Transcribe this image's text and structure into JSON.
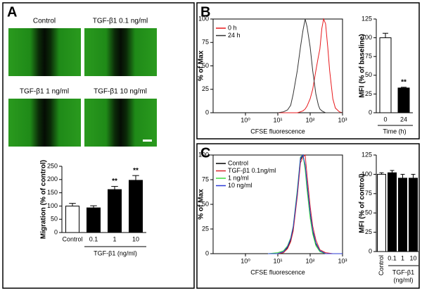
{
  "panel_labels": [
    "A",
    "B",
    "C"
  ],
  "images": [
    {
      "label": "Control"
    },
    {
      "label": "TGF-β1 0.1 ng/ml"
    },
    {
      "label": "TGF-β1 1 ng/ml"
    },
    {
      "label": "TGF-β1 10 ng/ml"
    }
  ],
  "chart_data": [
    {
      "type": "bar",
      "ylabel": "Migration (% of control)",
      "categories": [
        "Control",
        "0.1",
        "1",
        "10"
      ],
      "values": [
        100,
        93,
        162,
        197
      ],
      "errors": [
        10,
        8,
        12,
        18
      ],
      "colors": [
        "#ffffff",
        "#000000",
        "#000000",
        "#000000"
      ],
      "significance": [
        null,
        null,
        "**",
        "**"
      ],
      "group_label_lines": [
        "TGF-β1 (ng/ml)"
      ],
      "ylim": [
        0,
        250
      ],
      "yticks": [
        0,
        50,
        100,
        150,
        200,
        250
      ]
    },
    {
      "type": "line",
      "xlabel": "CFSE fluorescence",
      "ylabel": "% of Max",
      "log_x": true,
      "legend": "upper left",
      "x": [
        10,
        15,
        20,
        25,
        30,
        40,
        50,
        60,
        70,
        80,
        100,
        120,
        150,
        180,
        200,
        230,
        260,
        300,
        350,
        400,
        500,
        600,
        800,
        1000
      ],
      "series": [
        {
          "name": "0 h",
          "color": "#e8191c",
          "values": [
            0,
            0,
            0,
            0,
            0,
            0,
            1,
            2,
            4,
            7,
            15,
            25,
            45,
            60,
            68,
            90,
            100,
            95,
            70,
            45,
            15,
            5,
            1,
            0
          ]
        },
        {
          "name": "24 h",
          "color": "#333333",
          "values": [
            0,
            1,
            3,
            8,
            20,
            45,
            70,
            88,
            100,
            92,
            70,
            45,
            20,
            8,
            4,
            2,
            1,
            0,
            0,
            0,
            0,
            0,
            0,
            0
          ]
        }
      ],
      "xlim": [
        0.1,
        1000
      ],
      "xticks": [
        {
          "value": 1,
          "label": "10⁰"
        },
        {
          "value": 10,
          "label": "10¹"
        },
        {
          "value": 100,
          "label": "10²"
        },
        {
          "value": 1000,
          "label": "10³"
        }
      ],
      "ylim": [
        0,
        100
      ],
      "yticks": [
        0,
        25,
        50,
        75,
        100
      ]
    },
    {
      "type": "bar",
      "ylabel": "MFI (% of baseline)",
      "xlabel": "Time (h)",
      "categories": [
        "0",
        "24"
      ],
      "values": [
        100,
        33
      ],
      "errors": [
        6,
        1
      ],
      "colors": [
        "#ffffff",
        "#000000"
      ],
      "significance": [
        null,
        "**"
      ],
      "ylim": [
        0,
        125
      ],
      "yticks": [
        0,
        25,
        50,
        75,
        100,
        125
      ]
    },
    {
      "type": "line",
      "xlabel": "CFSE fluorescence",
      "ylabel": "% of Max",
      "log_x": true,
      "legend": "upper left",
      "x": [
        5,
        10,
        15,
        20,
        25,
        30,
        40,
        50,
        60,
        70,
        80,
        100,
        120,
        150,
        200,
        300,
        500,
        1000
      ],
      "series": [
        {
          "name": "Control",
          "color": "#000000",
          "values": [
            0,
            0,
            2,
            6,
            14,
            25,
            60,
            95,
            100,
            88,
            70,
            40,
            22,
            10,
            3,
            0,
            0,
            0
          ]
        },
        {
          "name": "TGF-β1 0.1ng/ml",
          "color": "#d9262b",
          "values": [
            0,
            0,
            1,
            5,
            12,
            23,
            58,
            92,
            98,
            100,
            80,
            48,
            28,
            14,
            4,
            1,
            0,
            0
          ]
        },
        {
          "name": "1 ng/ml",
          "color": "#3ddc3d",
          "values": [
            0,
            1,
            3,
            8,
            16,
            28,
            65,
            98,
            100,
            85,
            65,
            36,
            20,
            8,
            2,
            0,
            0,
            0
          ]
        },
        {
          "name": "10 ng/ml",
          "color": "#2b3bd6",
          "values": [
            0,
            0,
            2,
            7,
            15,
            27,
            62,
            97,
            100,
            90,
            72,
            42,
            24,
            11,
            3,
            0,
            0,
            0
          ]
        }
      ],
      "xlim": [
        0.1,
        1000
      ],
      "xticks": [
        {
          "value": 1,
          "label": "10⁰"
        },
        {
          "value": 10,
          "label": "10¹"
        },
        {
          "value": 100,
          "label": "10²"
        },
        {
          "value": 1000,
          "label": "10³"
        }
      ],
      "ylim": [
        0,
        100
      ],
      "yticks": [
        0,
        25,
        50,
        75,
        100
      ]
    },
    {
      "type": "bar",
      "ylabel": "MFI (% of control)",
      "categories": [
        "Control",
        "0.1",
        "1",
        "10"
      ],
      "values": [
        100,
        102,
        95,
        95
      ],
      "errors": [
        2,
        3,
        5,
        5
      ],
      "colors": [
        "#ffffff",
        "#000000",
        "#000000",
        "#000000"
      ],
      "group_label_lines": [
        "TGF-β1",
        "(ng/ml)"
      ],
      "ylim": [
        0,
        125
      ],
      "yticks": [
        0,
        25,
        50,
        75,
        100,
        125
      ]
    }
  ]
}
